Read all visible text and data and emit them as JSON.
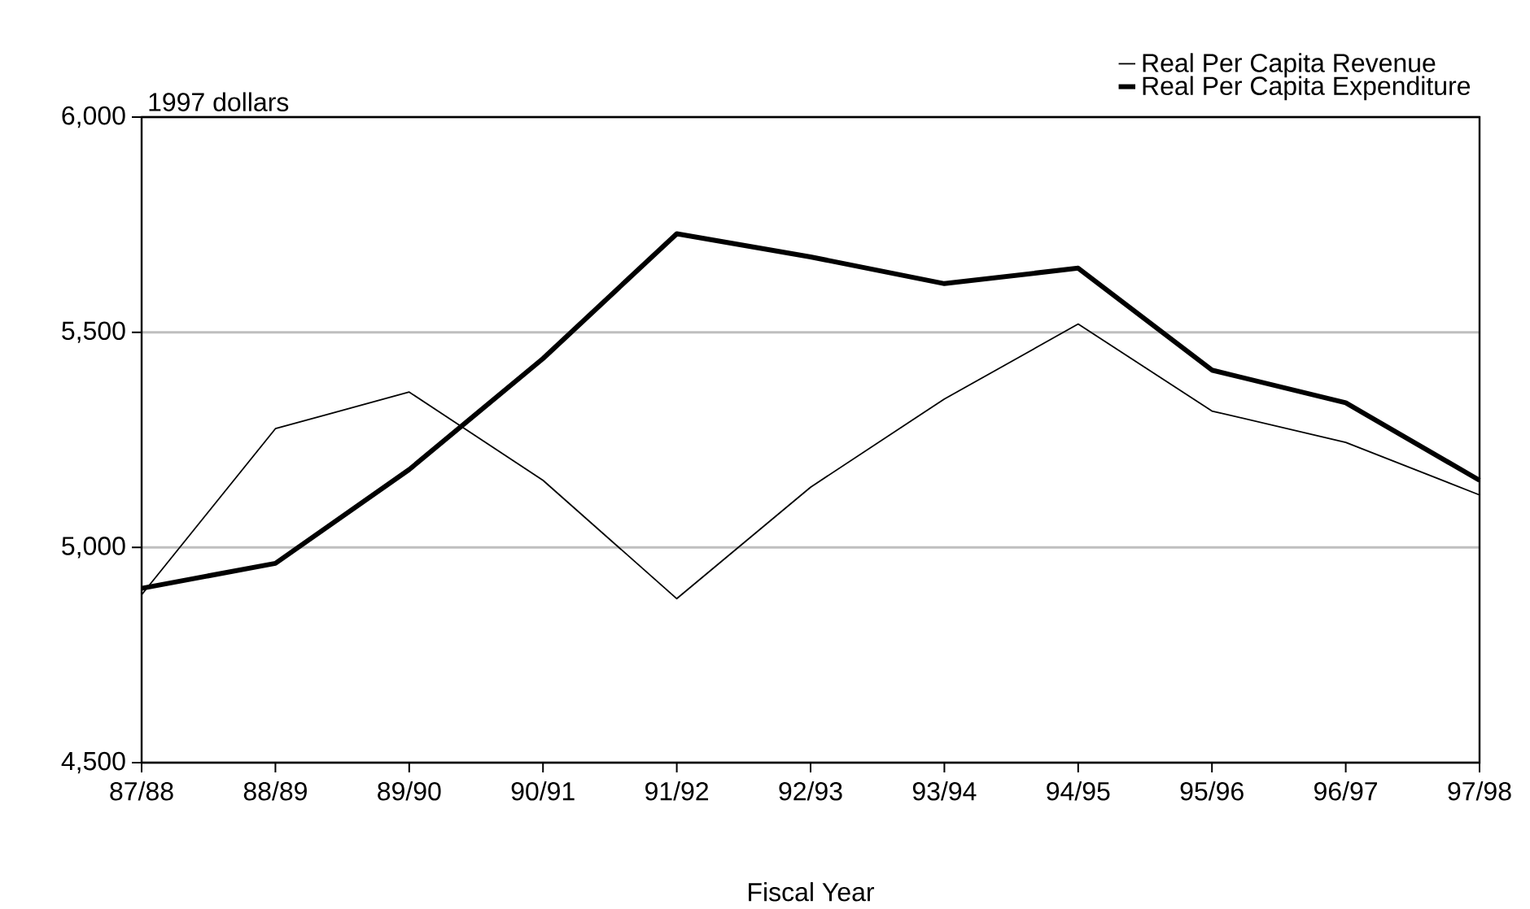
{
  "chart_data": {
    "type": "line",
    "ylabel": "1997 dollars",
    "xlabel": "Fiscal Year",
    "categories": [
      "87/88",
      "88/89",
      "89/90",
      "90/91",
      "91/92",
      "92/93",
      "93/94",
      "94/95",
      "95/96",
      "96/97",
      "97/98"
    ],
    "series": [
      {
        "name": "Real Per Capita Revenue",
        "color": "#000000",
        "values": [
          4890,
          5276,
          5361,
          5156,
          4881,
          5140,
          5345,
          5519,
          5317,
          5244,
          5122
        ]
      },
      {
        "name": "Real Per Capita Expenditure",
        "color": "#000000",
        "values": [
          4905,
          4963,
          5181,
          5439,
          5729,
          5675,
          5613,
          5649,
          5412,
          5336,
          5156
        ]
      }
    ],
    "ylim": [
      4500,
      6000
    ],
    "yticks": [
      {
        "value": 4500,
        "label": "4,500"
      },
      {
        "value": 5000,
        "label": "5,000"
      },
      {
        "value": 5500,
        "label": "5,500"
      },
      {
        "value": 6000,
        "label": "6,000"
      }
    ],
    "grid": "y",
    "legend": "top right",
    "marker": "none",
    "line_style": "solid"
  }
}
